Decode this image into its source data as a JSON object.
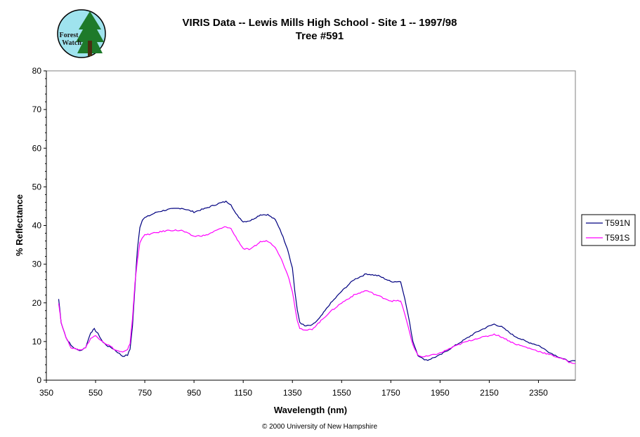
{
  "logo": {
    "line1": "Forest",
    "line2": "Watch",
    "bg_color": "#9fe3ee",
    "tree_color": "#1e7a2a"
  },
  "copyright": "© 2000 University of New Hampshire",
  "chart_data": {
    "type": "line",
    "title": "VIRIS Data -- Lewis Mills High School - Site 1 -- 1997/98",
    "subtitle": "Tree #591",
    "xlabel": "Wavelength (nm)",
    "ylabel": "% Reflectance",
    "xlim": [
      350,
      2500
    ],
    "ylim": [
      0,
      80
    ],
    "xticks": [
      350,
      550,
      750,
      950,
      1150,
      1350,
      1550,
      1750,
      1950,
      2150,
      2350
    ],
    "yticks": [
      0,
      10,
      20,
      30,
      40,
      50,
      60,
      70,
      80
    ],
    "grid": false,
    "legend_position": "right",
    "series": [
      {
        "name": "T591N",
        "color": "#000080",
        "points": [
          [
            400,
            21
          ],
          [
            410,
            15
          ],
          [
            430,
            11
          ],
          [
            450,
            9
          ],
          [
            470,
            8
          ],
          [
            490,
            7.7
          ],
          [
            510,
            8.5
          ],
          [
            530,
            12.3
          ],
          [
            545,
            13.2
          ],
          [
            560,
            12
          ],
          [
            580,
            9.8
          ],
          [
            600,
            8.8
          ],
          [
            620,
            8.2
          ],
          [
            640,
            7.2
          ],
          [
            660,
            6.2
          ],
          [
            680,
            6.5
          ],
          [
            690,
            8
          ],
          [
            700,
            14
          ],
          [
            710,
            24
          ],
          [
            720,
            34
          ],
          [
            730,
            39.5
          ],
          [
            740,
            41.5
          ],
          [
            750,
            42
          ],
          [
            800,
            43.5
          ],
          [
            850,
            44.2
          ],
          [
            900,
            44.5
          ],
          [
            950,
            43.5
          ],
          [
            1000,
            44.5
          ],
          [
            1050,
            45.7
          ],
          [
            1080,
            46.2
          ],
          [
            1100,
            45.5
          ],
          [
            1120,
            43
          ],
          [
            1150,
            41
          ],
          [
            1180,
            41.3
          ],
          [
            1220,
            42.8
          ],
          [
            1250,
            42.8
          ],
          [
            1280,
            41.5
          ],
          [
            1300,
            39
          ],
          [
            1330,
            34
          ],
          [
            1350,
            29
          ],
          [
            1360,
            23
          ],
          [
            1370,
            18
          ],
          [
            1380,
            15
          ],
          [
            1400,
            14
          ],
          [
            1430,
            14.2
          ],
          [
            1460,
            16
          ],
          [
            1500,
            19.5
          ],
          [
            1550,
            23
          ],
          [
            1600,
            26
          ],
          [
            1650,
            27.5
          ],
          [
            1700,
            27
          ],
          [
            1750,
            25.5
          ],
          [
            1790,
            25.5
          ],
          [
            1800,
            23
          ],
          [
            1820,
            17
          ],
          [
            1840,
            10
          ],
          [
            1860,
            6.5
          ],
          [
            1880,
            5.5
          ],
          [
            1900,
            5.2
          ],
          [
            1950,
            6.5
          ],
          [
            2000,
            8.5
          ],
          [
            2050,
            10.5
          ],
          [
            2100,
            12.5
          ],
          [
            2150,
            14
          ],
          [
            2170,
            14.5
          ],
          [
            2200,
            13.8
          ],
          [
            2250,
            11.5
          ],
          [
            2300,
            10
          ],
          [
            2350,
            9
          ],
          [
            2400,
            7
          ],
          [
            2450,
            5.5
          ],
          [
            2480,
            4.8
          ],
          [
            2500,
            5
          ]
        ]
      },
      {
        "name": "T591S",
        "color": "#ff00ff",
        "points": [
          [
            400,
            20
          ],
          [
            410,
            15
          ],
          [
            430,
            11
          ],
          [
            450,
            8.5
          ],
          [
            470,
            8
          ],
          [
            490,
            7.8
          ],
          [
            510,
            8.5
          ],
          [
            530,
            10.8
          ],
          [
            550,
            11.5
          ],
          [
            570,
            10.5
          ],
          [
            590,
            9.5
          ],
          [
            610,
            8.8
          ],
          [
            630,
            7.8
          ],
          [
            660,
            7.2
          ],
          [
            680,
            7.8
          ],
          [
            690,
            9.5
          ],
          [
            700,
            16
          ],
          [
            710,
            25
          ],
          [
            720,
            31
          ],
          [
            730,
            35.5
          ],
          [
            740,
            37
          ],
          [
            750,
            37.5
          ],
          [
            800,
            38.2
          ],
          [
            850,
            38.8
          ],
          [
            900,
            38.7
          ],
          [
            950,
            37.2
          ],
          [
            1000,
            37.5
          ],
          [
            1050,
            39
          ],
          [
            1080,
            39.7
          ],
          [
            1100,
            39.2
          ],
          [
            1120,
            37
          ],
          [
            1150,
            34
          ],
          [
            1180,
            33.8
          ],
          [
            1220,
            35.8
          ],
          [
            1250,
            36
          ],
          [
            1280,
            34.5
          ],
          [
            1300,
            32
          ],
          [
            1330,
            27.5
          ],
          [
            1350,
            23
          ],
          [
            1360,
            19
          ],
          [
            1370,
            15.5
          ],
          [
            1380,
            13.5
          ],
          [
            1400,
            12.8
          ],
          [
            1430,
            13.2
          ],
          [
            1460,
            15
          ],
          [
            1500,
            17.5
          ],
          [
            1550,
            20
          ],
          [
            1600,
            22
          ],
          [
            1650,
            23.2
          ],
          [
            1700,
            21.8
          ],
          [
            1750,
            20.5
          ],
          [
            1790,
            20.5
          ],
          [
            1800,
            18.5
          ],
          [
            1820,
            14
          ],
          [
            1840,
            9
          ],
          [
            1860,
            6.5
          ],
          [
            1880,
            6
          ],
          [
            1900,
            6.2
          ],
          [
            1950,
            7
          ],
          [
            2000,
            8.5
          ],
          [
            2050,
            9.8
          ],
          [
            2100,
            10.8
          ],
          [
            2150,
            11.5
          ],
          [
            2170,
            11.9
          ],
          [
            2200,
            11.2
          ],
          [
            2250,
            9.5
          ],
          [
            2300,
            8.5
          ],
          [
            2350,
            7.5
          ],
          [
            2400,
            6.5
          ],
          [
            2450,
            5.5
          ],
          [
            2480,
            4.5
          ],
          [
            2500,
            4.3
          ]
        ]
      }
    ]
  }
}
